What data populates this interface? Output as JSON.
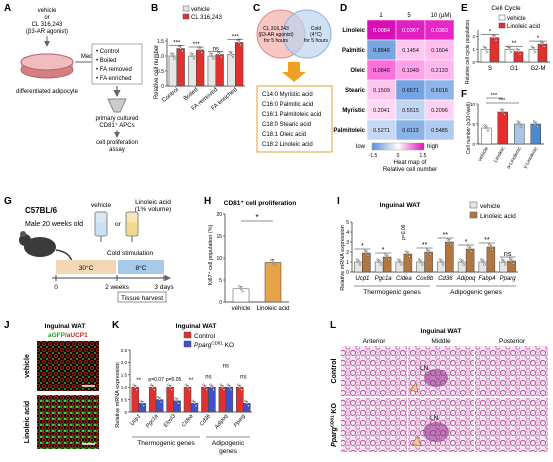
{
  "panels": {
    "A": {
      "letter": "A",
      "dish_top_label": [
        "vehicle",
        "or",
        "CL 316,243",
        "(β3-AR agonist)"
      ],
      "dish_bottom_label": "differentiated adipocyte",
      "arrow_label": "Media",
      "media_box": [
        "• Control",
        "• Boiled",
        "• FA removed",
        "• FA enriched"
      ],
      "cells_label": [
        "primary cultured",
        "CD81⁺ APCs"
      ],
      "assay_label": [
        "cell proliferation",
        "assay"
      ]
    },
    "B": {
      "letter": "B",
      "legend": [
        {
          "label": "vehicle",
          "color": "#e6e6e6"
        },
        {
          "label": "CL 316,243",
          "color": "#e0312f"
        }
      ],
      "ylabel": "Relative cell number",
      "yticks": [
        "0",
        "0.5",
        "1.0",
        "1.5"
      ],
      "categories": [
        "Control",
        "Boiled",
        "FA removed",
        "FA enriched"
      ],
      "sig": [
        "***",
        "***",
        "ns",
        "***"
      ]
    },
    "C": {
      "letter": "C",
      "left_circle": [
        "CL 316,243",
        "(β3-AR agonist)",
        "for 5 hours"
      ],
      "right_circle": [
        "Cold",
        "(4°C)",
        "for 5 hours"
      ],
      "fatty_acids": [
        "C14:0 Myristic acid",
        "C16:0 Palmitic acid",
        "C16:1 Palmitoleic acid",
        "C18:0 Stearic acid",
        "C18:1 Oleic acid",
        "C18:2 Linoleic acid"
      ]
    },
    "D": {
      "letter": "D",
      "columns": [
        "1",
        "5",
        "10 (μM)"
      ],
      "rows": [
        "Linoleic",
        "Palmitic",
        "Oleic",
        "Stearic",
        "Myristic",
        "Palmitoleic"
      ],
      "values": [
        [
          "0.0084",
          "0.0367",
          "0.0383"
        ],
        [
          "0.8846",
          "0.1454",
          "0.1604"
        ],
        [
          "0.0846",
          "0.1049",
          "0.2133"
        ],
        [
          "0.1509",
          "0.6571",
          "0.6016"
        ],
        [
          "0.2041",
          "0.5515",
          "0.2096"
        ],
        [
          "0.5271",
          "0.6113",
          "0.5485"
        ]
      ],
      "cell_colors": [
        [
          "#d80fb4",
          "#e21fc0",
          "#e626c6"
        ],
        [
          "#7aa6e0",
          "#ffc8f2",
          "#ffbeef"
        ],
        [
          "#ff6fdb",
          "#ffa2e8",
          "#ffb8ee"
        ],
        [
          "#ffc4f0",
          "#75a3e3",
          "#8eb6ea"
        ],
        [
          "#ffd9f5",
          "#c2d6f2",
          "#ffd2f4"
        ],
        [
          "#c6d9f3",
          "#8ab3e9",
          "#b0cbef"
        ]
      ],
      "scale_low": "low",
      "scale_high": "high",
      "scale_ticks": [
        "-1.5",
        "0",
        "1.5"
      ],
      "caption": [
        "Heat map of",
        "Relative cell number"
      ]
    },
    "E": {
      "letter": "E",
      "title": "Cell Cycle",
      "legend": [
        {
          "label": "vehicle",
          "color": "#ffffff"
        },
        {
          "label": "Linoleic acid",
          "color": "#e0312f"
        }
      ],
      "ylabel": "Relative cell cycle population",
      "categories": [
        "S",
        "G1",
        "G2-M"
      ],
      "sig": [
        "*",
        "**",
        "*"
      ]
    },
    "F": {
      "letter": "F",
      "ylabel": "Cell number (x10⁴/well)",
      "categories": [
        "vehicle",
        "Linoleic",
        "α-Linolenic",
        "γ-Linolenic"
      ],
      "sig": [
        "***",
        "***"
      ]
    },
    "G": {
      "letter": "G",
      "mouse_label": [
        "C57BL/6",
        "Male 20 weeks old"
      ],
      "vehicle_label": "vehicle",
      "or_label": "or",
      "la_label": [
        "Linoleic acid",
        "(1% volume)"
      ],
      "cold_label": "Cold stimulation",
      "temp_warm": "30°C",
      "temp_cold": "8°C",
      "timeline": [
        "0",
        "2 weeks",
        "3 days"
      ],
      "harvest": "Tissue harvest"
    },
    "H": {
      "letter": "H",
      "title": "CD81⁺ cell proliferation",
      "ylabel": "Ki67⁺ cell population (%)",
      "categories": [
        "vehicle",
        "Linoleic acid"
      ],
      "sig": "*"
    },
    "I": {
      "letter": "I",
      "title": "Inguinal WAT",
      "legend": [
        {
          "label": "vehicle",
          "color": "#e6e6e6"
        },
        {
          "label": "Linoleic acid",
          "color": "#b07840"
        }
      ],
      "ylabel": "Relative mRNA expression",
      "genes": [
        "Ucp1",
        "Pgc1a",
        "Cidea",
        "Cox8b",
        "Cd36",
        "Adipoq",
        "Fabp4",
        "Pparg"
      ],
      "group1": "Thermogenic genes",
      "group2": "Adipogenic genes",
      "pval": "p=0.06",
      "sig": [
        "*",
        "*",
        "",
        "**",
        "**",
        "*",
        "**",
        "ns"
      ]
    },
    "J": {
      "letter": "J",
      "title": "Inguinal WAT",
      "stain_a": "aGFP",
      "stain_b": "/aUCP1",
      "rows": [
        "vehicle",
        "Linoleic acid"
      ]
    },
    "K": {
      "letter": "K",
      "title": "Inguinal WAT",
      "legend": [
        {
          "label": "Control",
          "color": "#e0312f"
        },
        {
          "label": "Pparg",
          "sup": "CD81",
          "suffix": " KO",
          "color": "#3f52c7"
        }
      ],
      "ylabel": "Relative mRNA expression",
      "genes": [
        "Ucp1",
        "Pgc1a",
        "Elovl3",
        "Cidea",
        "Cd36",
        "Adipoq",
        "Pparg"
      ],
      "pvals": [
        "p=0.07",
        "p=0.05"
      ],
      "sig": [
        "**",
        "**",
        "ns",
        "ns",
        "ns"
      ],
      "group1": "Thermogenic genes",
      "group2": [
        "Adipogenic",
        "genes"
      ]
    },
    "L": {
      "letter": "L",
      "title": "Inguinal WAT",
      "columns": [
        "Anterior",
        "Middle",
        "Posterior"
      ],
      "rows": [
        "Control",
        "Pparg"
      ],
      "row2_sup": "CD81",
      "row2_suffix": " KO",
      "ln_label": "LN"
    }
  },
  "chart_data": [
    {
      "panel": "B",
      "type": "bar",
      "categories": [
        "Control",
        "Boiled",
        "FA removed",
        "FA enriched"
      ],
      "series": [
        {
          "name": "vehicle",
          "values": [
            1.0,
            1.0,
            1.0,
            1.05
          ]
        },
        {
          "name": "CL 316,243",
          "values": [
            1.25,
            1.2,
            1.05,
            1.45
          ]
        }
      ],
      "ylabel": "Relative cell number",
      "ylim": [
        0,
        1.6
      ]
    },
    {
      "panel": "E",
      "type": "bar",
      "categories": [
        "S",
        "G1",
        "G2-M"
      ],
      "series": [
        {
          "name": "vehicle",
          "values": [
            1.0,
            1.0,
            1.0
          ]
        },
        {
          "name": "Linoleic acid",
          "values": [
            1.9,
            0.8,
            1.4
          ]
        }
      ],
      "ylabel": "Relative cell cycle population",
      "ylim": [
        0,
        2.5
      ]
    },
    {
      "panel": "F",
      "type": "bar",
      "categories": [
        "vehicle",
        "Linoleic",
        "α-Linolenic",
        "γ-Linolenic"
      ],
      "values": [
        4.0,
        8.0,
        5.0,
        5.0
      ],
      "ylabel": "Cell number (x10⁴/well)",
      "ylim": [
        0,
        10
      ]
    },
    {
      "panel": "H",
      "type": "bar",
      "categories": [
        "vehicle",
        "Linoleic acid"
      ],
      "values": [
        3.0,
        9.0
      ],
      "ylabel": "Ki67⁺ cell population (%)",
      "ylim": [
        0,
        20
      ]
    },
    {
      "panel": "I",
      "type": "bar",
      "categories": [
        "Ucp1",
        "Pgc1a",
        "Cidea",
        "Cox8b",
        "Cd36",
        "Adipoq",
        "Fabp4",
        "Pparg"
      ],
      "series": [
        {
          "name": "vehicle",
          "values": [
            1,
            1,
            1,
            1,
            1,
            1,
            1,
            1
          ]
        },
        {
          "name": "Linoleic acid",
          "values": [
            1.9,
            1.5,
            1.8,
            2.0,
            3.0,
            2.3,
            2.5,
            1.1
          ]
        }
      ],
      "ylabel": "Relative mRNA expression",
      "ylim": [
        0,
        5
      ]
    },
    {
      "panel": "K",
      "type": "bar",
      "categories": [
        "Ucp1",
        "Pgc1a",
        "Elovl3",
        "Cidea",
        "Cd36",
        "Adipoq",
        "Pparg"
      ],
      "series": [
        {
          "name": "Control",
          "values": [
            1,
            1,
            1,
            1,
            1,
            1,
            1
          ]
        },
        {
          "name": "PpargCD81 KO",
          "values": [
            0.35,
            0.5,
            0.45,
            0.35,
            1.0,
            1.0,
            0.35
          ]
        }
      ],
      "ylabel": "Relative mRNA expression",
      "ylim": [
        0,
        2.5
      ]
    }
  ]
}
